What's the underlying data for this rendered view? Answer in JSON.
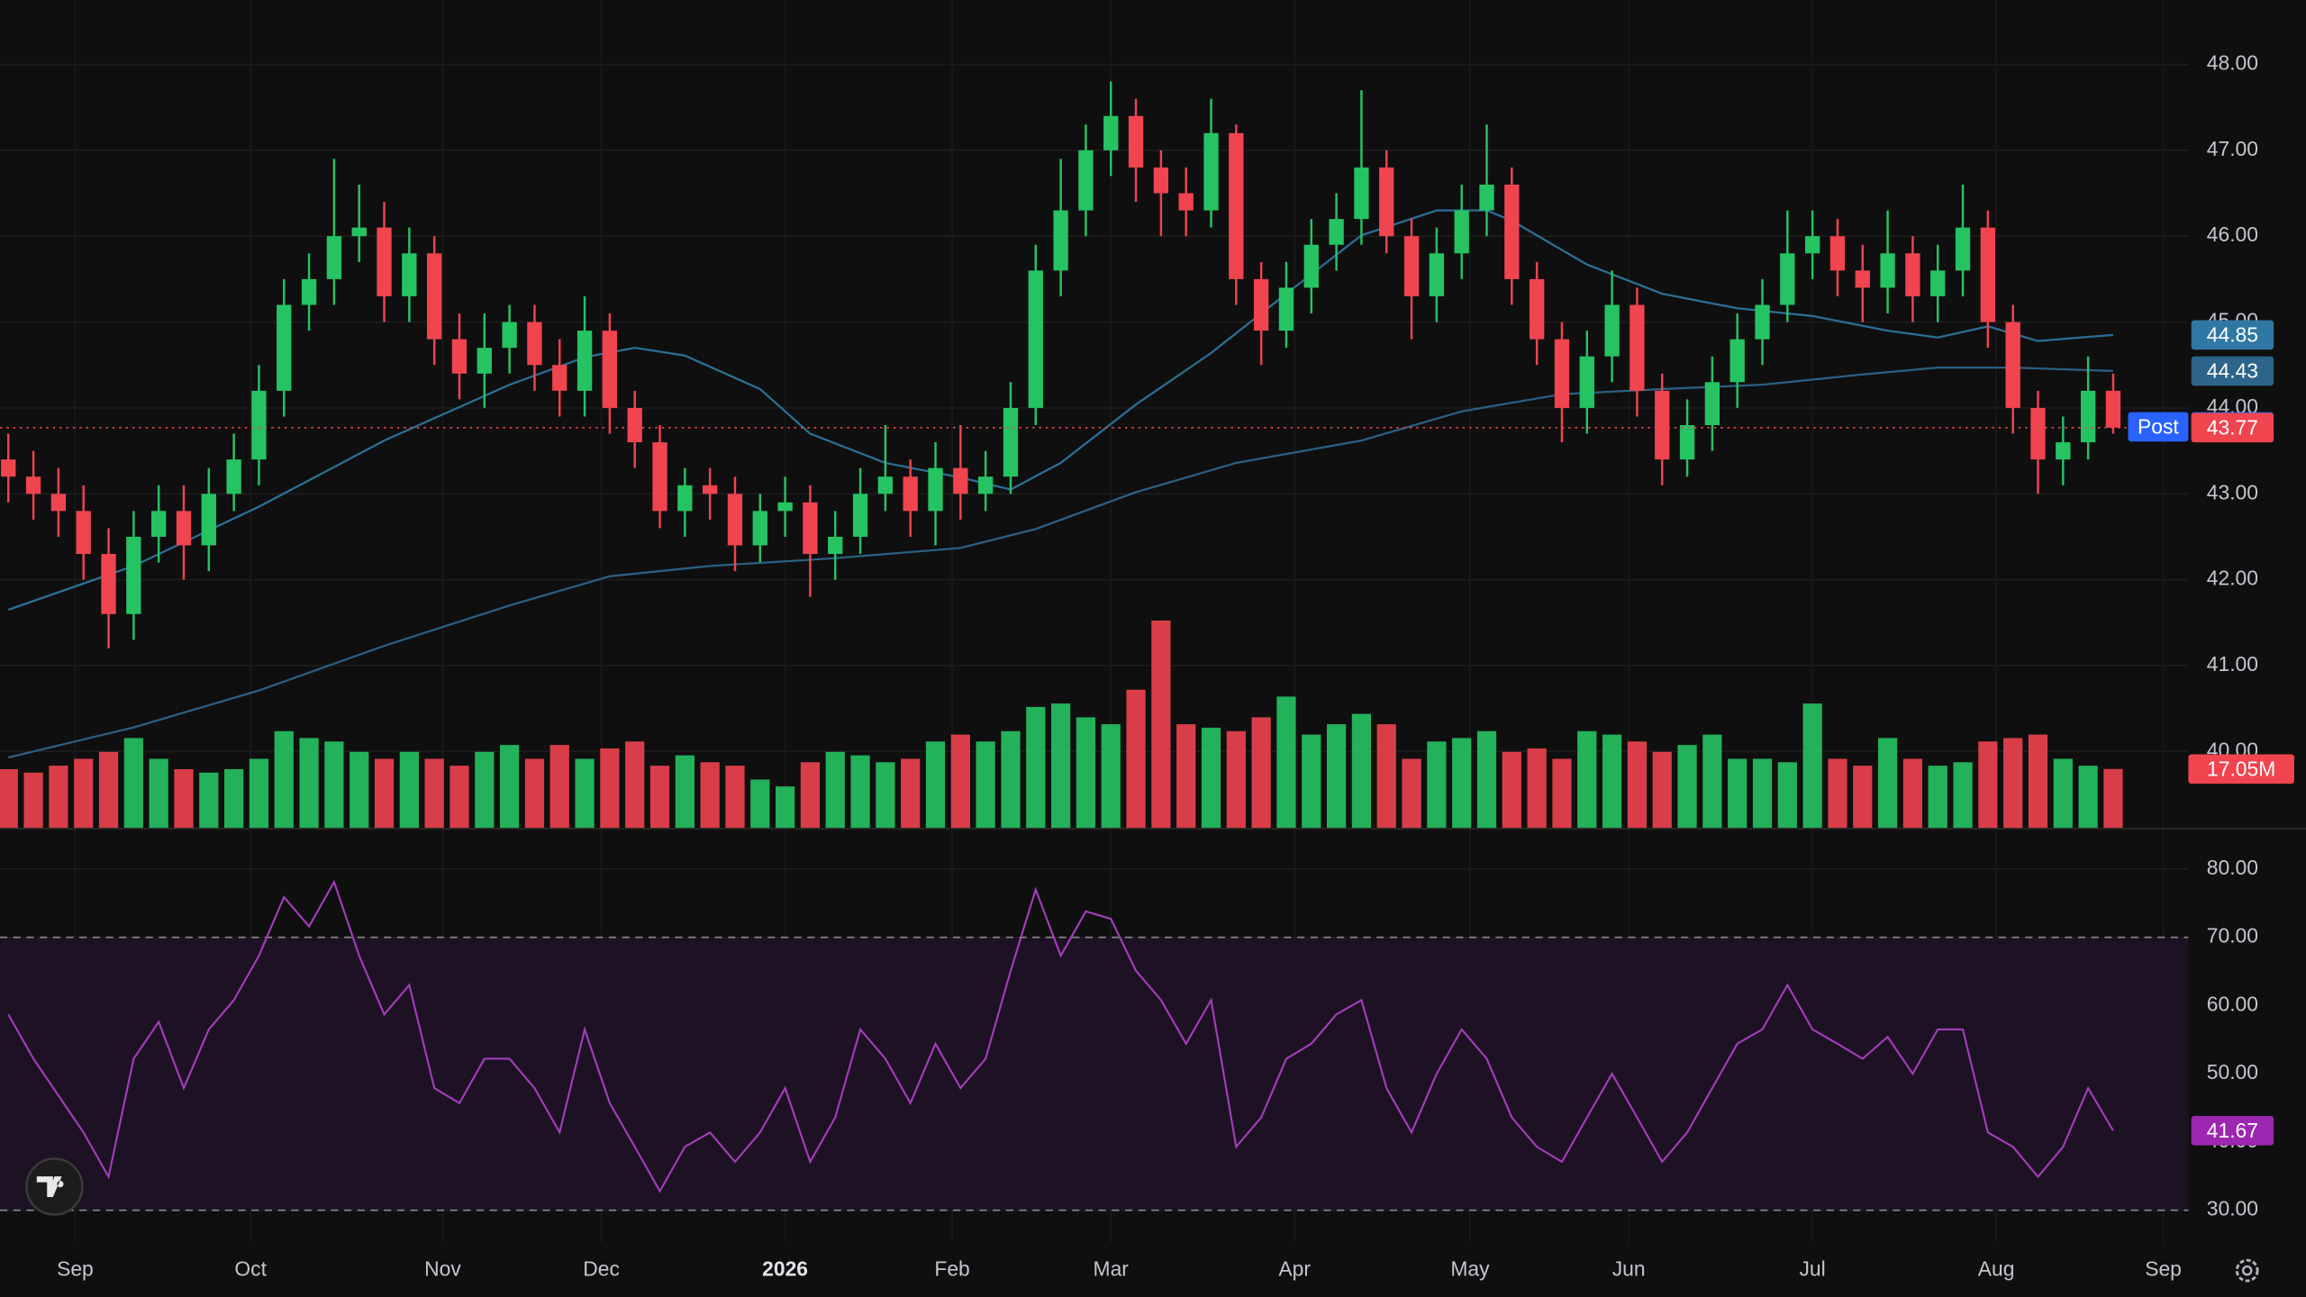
{
  "chart_data": {
    "type": "candlestick",
    "up_color": "#26c363",
    "down_color": "#f0444f",
    "grid": true,
    "x": [
      0,
      3,
      6,
      9,
      12,
      15,
      18,
      21,
      24,
      27,
      30,
      33,
      36,
      39,
      42,
      45,
      48,
      51,
      54,
      57,
      60,
      63,
      66,
      69,
      72,
      75,
      78,
      81,
      84,
      87,
      90,
      93,
      96,
      99,
      102,
      105,
      108,
      111,
      114,
      117,
      120,
      123,
      126,
      129,
      132,
      135,
      138,
      141,
      144,
      147,
      150,
      153,
      156,
      159,
      162,
      165,
      168,
      171,
      174,
      177,
      180,
      183,
      186,
      189,
      192,
      195,
      198,
      201,
      204,
      207,
      210,
      213,
      216,
      219,
      222,
      225,
      228,
      231,
      234,
      237,
      240,
      243,
      246,
      249,
      252
    ],
    "open": [
      43.4,
      43.2,
      43.0,
      42.8,
      42.3,
      41.6,
      42.5,
      42.8,
      42.4,
      43.0,
      43.4,
      44.2,
      45.2,
      45.5,
      46.0,
      46.1,
      45.3,
      45.8,
      44.8,
      44.4,
      44.7,
      45.0,
      44.5,
      44.2,
      44.9,
      44.0,
      43.6,
      42.8,
      43.1,
      43.0,
      42.4,
      42.8,
      42.9,
      42.3,
      42.5,
      43.0,
      43.2,
      42.8,
      43.3,
      43.0,
      43.2,
      44.0,
      45.6,
      46.3,
      47.0,
      47.4,
      46.8,
      46.5,
      46.3,
      47.2,
      45.5,
      44.9,
      45.4,
      45.9,
      46.2,
      46.8,
      46.0,
      45.3,
      45.8,
      46.3,
      46.6,
      45.5,
      44.8,
      44.0,
      44.6,
      45.2,
      44.2,
      43.4,
      43.8,
      44.3,
      44.8,
      45.2,
      45.8,
      46.0,
      45.6,
      45.4,
      45.8,
      45.3,
      45.6,
      46.1,
      45.0,
      44.0,
      43.4,
      43.6,
      44.2
    ],
    "high": [
      43.7,
      43.5,
      43.3,
      43.1,
      42.6,
      42.8,
      43.1,
      43.1,
      43.3,
      43.7,
      44.5,
      45.5,
      45.8,
      46.9,
      46.6,
      46.4,
      46.1,
      46.0,
      45.1,
      45.1,
      45.2,
      45.2,
      44.8,
      45.3,
      45.1,
      44.2,
      43.8,
      43.3,
      43.3,
      43.2,
      43.0,
      43.2,
      43.1,
      42.8,
      43.3,
      43.8,
      43.4,
      43.6,
      43.8,
      43.5,
      44.3,
      45.9,
      46.9,
      47.3,
      47.8,
      47.6,
      47.0,
      46.8,
      47.6,
      47.3,
      45.7,
      45.7,
      46.2,
      46.5,
      47.7,
      47.0,
      46.2,
      46.1,
      46.6,
      47.3,
      46.8,
      45.7,
      45.0,
      44.9,
      45.6,
      45.4,
      44.4,
      44.1,
      44.6,
      45.1,
      45.5,
      46.3,
      46.3,
      46.2,
      45.9,
      46.3,
      46.0,
      45.9,
      46.6,
      46.3,
      45.2,
      44.2,
      43.9,
      44.6,
      44.4
    ],
    "low": [
      42.9,
      42.7,
      42.5,
      42.0,
      41.2,
      41.3,
      42.2,
      42.0,
      42.1,
      42.8,
      43.1,
      43.9,
      44.9,
      45.2,
      45.7,
      45.0,
      45.0,
      44.5,
      44.1,
      44.0,
      44.4,
      44.2,
      43.9,
      43.9,
      43.7,
      43.3,
      42.6,
      42.5,
      42.7,
      42.1,
      42.2,
      42.5,
      41.8,
      42.0,
      42.3,
      42.8,
      42.5,
      42.4,
      42.7,
      42.8,
      43.0,
      43.8,
      45.3,
      46.0,
      46.7,
      46.4,
      46.0,
      46.0,
      46.1,
      45.2,
      44.5,
      44.7,
      45.1,
      45.6,
      45.9,
      45.8,
      44.8,
      45.0,
      45.5,
      46.0,
      45.2,
      44.5,
      43.6,
      43.7,
      44.3,
      43.9,
      43.1,
      43.2,
      43.5,
      44.0,
      44.5,
      45.0,
      45.5,
      45.3,
      45.0,
      45.1,
      45.0,
      45.0,
      45.3,
      44.7,
      43.7,
      43.0,
      43.1,
      43.4,
      43.7
    ],
    "close": [
      43.2,
      43.0,
      42.8,
      42.3,
      41.6,
      42.5,
      42.8,
      42.4,
      43.0,
      43.4,
      44.2,
      45.2,
      45.5,
      46.0,
      46.1,
      45.3,
      45.8,
      44.8,
      44.4,
      44.7,
      45.0,
      44.5,
      44.2,
      44.9,
      44.0,
      43.6,
      42.8,
      43.1,
      43.0,
      42.4,
      42.8,
      42.9,
      42.3,
      42.5,
      43.0,
      43.2,
      42.8,
      43.3,
      43.0,
      43.2,
      44.0,
      45.6,
      46.3,
      47.0,
      47.4,
      46.8,
      46.5,
      46.3,
      47.2,
      45.5,
      44.9,
      45.4,
      45.9,
      46.2,
      46.8,
      46.0,
      45.3,
      45.8,
      46.3,
      46.6,
      45.5,
      44.8,
      44.0,
      44.6,
      45.2,
      44.2,
      43.4,
      43.8,
      44.3,
      44.8,
      45.2,
      45.8,
      46.0,
      45.6,
      45.4,
      45.8,
      45.3,
      45.6,
      46.1,
      45.0,
      44.0,
      43.4,
      43.6,
      44.2,
      43.77
    ],
    "xlim": [
      -1,
      261
    ],
    "ylim": [
      39.11,
      48.75
    ],
    "yticks": [
      {
        "value": 48,
        "label": "48.00"
      },
      {
        "value": 47,
        "label": "47.00"
      },
      {
        "value": 46,
        "label": "46.00"
      },
      {
        "value": 45,
        "label": "45.00"
      },
      {
        "value": 44,
        "label": "44.00"
      },
      {
        "value": 43,
        "label": "43.00"
      },
      {
        "value": 42,
        "label": "42.00"
      },
      {
        "value": 41,
        "label": "41.00"
      },
      {
        "value": 40,
        "label": "40.00"
      }
    ],
    "xticks": [
      {
        "value": 8,
        "label": "Sep"
      },
      {
        "value": 29,
        "label": "Oct"
      },
      {
        "value": 52,
        "label": "Nov"
      },
      {
        "value": 71,
        "label": "Dec"
      },
      {
        "value": 93,
        "label": "2026"
      },
      {
        "value": 113,
        "label": "Feb"
      },
      {
        "value": 132,
        "label": "Mar"
      },
      {
        "value": 154,
        "label": "Apr"
      },
      {
        "value": 175,
        "label": "May"
      },
      {
        "value": 194,
        "label": "Jun"
      },
      {
        "value": 216,
        "label": "Jul"
      },
      {
        "value": 238,
        "label": "Aug"
      },
      {
        "value": 258,
        "label": "Sep"
      }
    ],
    "ma": [
      {
        "color": "#2b6f96",
        "badge_color": "#2f78a3",
        "x": [
          0,
          15,
          30,
          45,
          60,
          69,
          75,
          81,
          90,
          96,
          105,
          114,
          120,
          126,
          135,
          144,
          153,
          162,
          171,
          177,
          180,
          189,
          198,
          207,
          216,
          225,
          231,
          237,
          243,
          252
        ],
        "values": [
          41.65,
          42.16,
          42.85,
          43.62,
          44.27,
          44.59,
          44.7,
          44.61,
          44.22,
          43.7,
          43.36,
          43.19,
          43.05,
          43.36,
          44.04,
          44.64,
          45.33,
          46.01,
          46.3,
          46.3,
          46.18,
          45.67,
          45.33,
          45.16,
          45.07,
          44.9,
          44.82,
          44.95,
          44.78,
          44.85
        ]
      },
      {
        "color": "#2b5f82",
        "badge_color": "#2d6489",
        "x": [
          0,
          15,
          30,
          45,
          60,
          72,
          84,
          99,
          114,
          123,
          135,
          147,
          162,
          174,
          186,
          198,
          210,
          222,
          231,
          240,
          252
        ],
        "values": [
          39.93,
          40.28,
          40.71,
          41.23,
          41.7,
          42.04,
          42.16,
          42.25,
          42.37,
          42.59,
          43.02,
          43.36,
          43.62,
          43.96,
          44.16,
          44.22,
          44.27,
          44.39,
          44.47,
          44.47,
          44.43
        ]
      }
    ],
    "post": {
      "label": "Post",
      "value": 43.78,
      "color": "#2962ff"
    },
    "volume": {
      "values": [
        17,
        16,
        18,
        20,
        22,
        26,
        20,
        17,
        16,
        17,
        20,
        28,
        26,
        25,
        22,
        20,
        22,
        20,
        18,
        22,
        24,
        20,
        24,
        20,
        23,
        25,
        18,
        21,
        19,
        18,
        14,
        12,
        19,
        22,
        21,
        19,
        20,
        25,
        27,
        25,
        28,
        35,
        36,
        32,
        30,
        40,
        60,
        30,
        29,
        28,
        32,
        38,
        27,
        30,
        33,
        30,
        20,
        25,
        26,
        28,
        22,
        23,
        20,
        28,
        27,
        25,
        22,
        24,
        27,
        20,
        20,
        19,
        36,
        20,
        18,
        26,
        20,
        18,
        19,
        25,
        26,
        27,
        20,
        18,
        17.05
      ],
      "value_labels": {
        "84": "17.05M"
      }
    },
    "rsi": {
      "color": "#a53cbc",
      "band_color": "#1d1224",
      "band": [
        30,
        70
      ],
      "values": [
        58.7,
        52.2,
        46.8,
        41.4,
        34.9,
        52.2,
        57.6,
        47.9,
        56.5,
        60.8,
        67.3,
        75.9,
        71.6,
        78.1,
        67.3,
        58.7,
        63.0,
        47.9,
        45.7,
        52.2,
        52.2,
        47.9,
        41.4,
        56.5,
        45.7,
        39.3,
        32.8,
        39.3,
        41.4,
        37.1,
        41.4,
        47.9,
        37.1,
        43.6,
        56.5,
        52.2,
        45.7,
        54.4,
        47.9,
        52.2,
        65.1,
        77.0,
        67.3,
        73.8,
        72.7,
        65.1,
        60.8,
        54.4,
        60.8,
        39.3,
        43.6,
        52.2,
        54.4,
        58.7,
        60.8,
        47.9,
        41.4,
        50.0,
        56.5,
        52.2,
        43.6,
        39.3,
        37.1,
        43.6,
        50.0,
        43.6,
        37.1,
        41.4,
        47.9,
        54.4,
        56.5,
        63.0,
        56.5,
        54.4,
        52.2,
        55.4,
        50.0,
        56.5,
        56.5,
        41.4,
        39.3,
        34.9,
        39.3,
        47.9,
        41.67
      ],
      "ylim": [
        25.26,
        86.03
      ],
      "yticks": [
        {
          "value": 80,
          "label": "80.00"
        },
        {
          "value": 70,
          "label": "70.00"
        },
        {
          "value": 60,
          "label": "60.00"
        },
        {
          "value": 50,
          "label": "50.00"
        },
        {
          "value": 40,
          "label": "40.00"
        },
        {
          "value": 30,
          "label": "30.00"
        }
      ]
    }
  }
}
